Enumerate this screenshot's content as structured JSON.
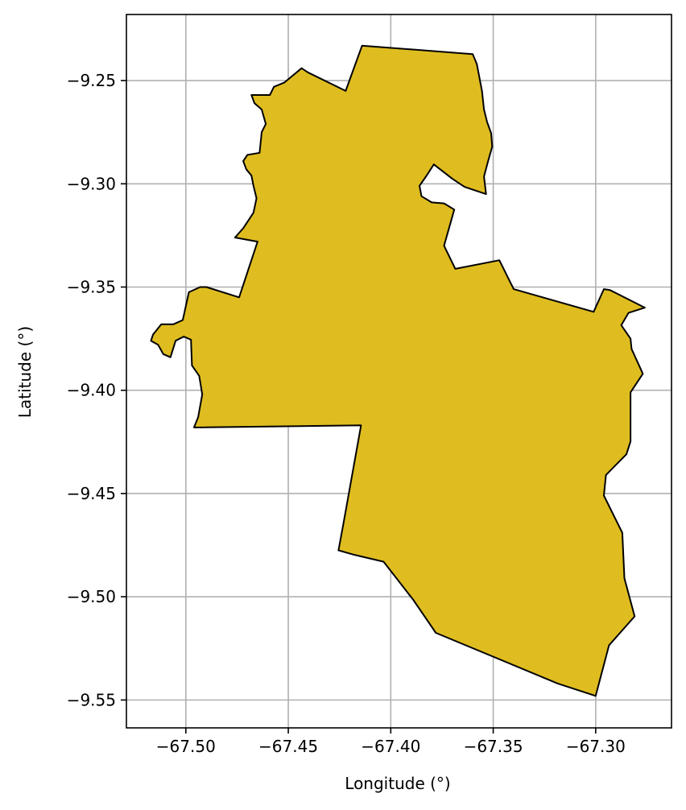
{
  "chart_data": {
    "type": "map",
    "xlabel": "Longitude (°)",
    "ylabel": "Latitude (°)",
    "xlim": [
      -67.529,
      -67.263
    ],
    "ylim": [
      -9.5635,
      -9.218
    ],
    "grid": true,
    "x_ticks": [
      {
        "value": -67.5,
        "label": "−67.50"
      },
      {
        "value": -67.45,
        "label": "−67.45"
      },
      {
        "value": -67.4,
        "label": "−67.40"
      },
      {
        "value": -67.35,
        "label": "−67.35"
      },
      {
        "value": -67.3,
        "label": "−67.30"
      }
    ],
    "y_ticks": [
      {
        "value": -9.25,
        "label": "−9.25"
      },
      {
        "value": -9.3,
        "label": "−9.30"
      },
      {
        "value": -9.35,
        "label": "−9.35"
      },
      {
        "value": -9.4,
        "label": "−9.40"
      },
      {
        "value": -9.45,
        "label": "−9.45"
      },
      {
        "value": -9.5,
        "label": "−9.50"
      },
      {
        "value": -9.55,
        "label": "−9.55"
      }
    ],
    "colors": {
      "fill": "#dfbd20",
      "edge": "#000000",
      "grid": "#b0b0b0"
    },
    "polygon": [
      [
        -67.414,
        -9.2331
      ],
      [
        -67.36,
        -9.2372
      ],
      [
        -67.358,
        -9.242
      ],
      [
        -67.3555,
        -9.255
      ],
      [
        -67.3545,
        -9.264
      ],
      [
        -67.353,
        -9.27
      ],
      [
        -67.351,
        -9.2755
      ],
      [
        -67.3505,
        -9.282
      ],
      [
        -67.3525,
        -9.289
      ],
      [
        -67.3545,
        -9.2965
      ],
      [
        -67.3535,
        -9.305
      ],
      [
        -67.364,
        -9.3015
      ],
      [
        -67.37,
        -9.2975
      ],
      [
        -67.379,
        -9.2906
      ],
      [
        -67.3825,
        -9.296
      ],
      [
        -67.386,
        -9.301
      ],
      [
        -67.385,
        -9.306
      ],
      [
        -67.38,
        -9.309
      ],
      [
        -67.374,
        -9.3095
      ],
      [
        -67.369,
        -9.3125
      ],
      [
        -67.374,
        -9.33
      ],
      [
        -67.3685,
        -9.3412
      ],
      [
        -67.347,
        -9.337
      ],
      [
        -67.34,
        -9.351
      ],
      [
        -67.301,
        -9.362
      ],
      [
        -67.296,
        -9.351
      ],
      [
        -67.293,
        -9.3515
      ],
      [
        -67.276,
        -9.36
      ],
      [
        -67.284,
        -9.3625
      ],
      [
        -67.2875,
        -9.3685
      ],
      [
        -67.283,
        -9.375
      ],
      [
        -67.2825,
        -9.38
      ],
      [
        -67.277,
        -9.392
      ],
      [
        -67.283,
        -9.401
      ],
      [
        -67.283,
        -9.4248
      ],
      [
        -67.285,
        -9.431
      ],
      [
        -67.295,
        -9.441
      ],
      [
        -67.296,
        -9.451
      ],
      [
        -67.287,
        -9.469
      ],
      [
        -67.286,
        -9.491
      ],
      [
        -67.281,
        -9.5095
      ],
      [
        -67.2935,
        -9.5235
      ],
      [
        -67.3,
        -9.548
      ],
      [
        -67.3185,
        -9.542
      ],
      [
        -67.378,
        -9.5175
      ],
      [
        -67.389,
        -9.5015
      ],
      [
        -67.4035,
        -9.483
      ],
      [
        -67.4185,
        -9.4795
      ],
      [
        -67.4255,
        -9.4775
      ],
      [
        -67.423,
        -9.464
      ],
      [
        -67.4145,
        -9.417
      ],
      [
        -67.496,
        -9.418
      ],
      [
        -67.494,
        -9.413
      ],
      [
        -67.492,
        -9.402
      ],
      [
        -67.4935,
        -9.393
      ],
      [
        -67.497,
        -9.388
      ],
      [
        -67.4975,
        -9.3755
      ],
      [
        -67.501,
        -9.374
      ],
      [
        -67.505,
        -9.376
      ],
      [
        -67.5075,
        -9.384
      ],
      [
        -67.511,
        -9.3825
      ],
      [
        -67.5135,
        -9.378
      ],
      [
        -67.517,
        -9.376
      ],
      [
        -67.516,
        -9.373
      ],
      [
        -67.512,
        -9.368
      ],
      [
        -67.506,
        -9.368
      ],
      [
        -67.5015,
        -9.366
      ],
      [
        -67.4985,
        -9.3525
      ],
      [
        -67.493,
        -9.35
      ],
      [
        -67.49,
        -9.35
      ],
      [
        -67.474,
        -9.355
      ],
      [
        -67.465,
        -9.328
      ],
      [
        -67.476,
        -9.326
      ],
      [
        -67.472,
        -9.3215
      ],
      [
        -67.467,
        -9.314
      ],
      [
        -67.4655,
        -9.307
      ],
      [
        -67.467,
        -9.301
      ],
      [
        -67.468,
        -9.296
      ],
      [
        -67.4705,
        -9.293
      ],
      [
        -67.472,
        -9.289
      ],
      [
        -67.47,
        -9.286
      ],
      [
        -67.464,
        -9.285
      ],
      [
        -67.463,
        -9.275
      ],
      [
        -67.461,
        -9.271
      ],
      [
        -67.463,
        -9.264
      ],
      [
        -67.4665,
        -9.261
      ],
      [
        -67.468,
        -9.257
      ],
      [
        -67.459,
        -9.257
      ],
      [
        -67.457,
        -9.253
      ],
      [
        -67.452,
        -9.251
      ],
      [
        -67.4435,
        -9.244
      ],
      [
        -67.4405,
        -9.246
      ],
      [
        -67.422,
        -9.255
      ]
    ]
  }
}
